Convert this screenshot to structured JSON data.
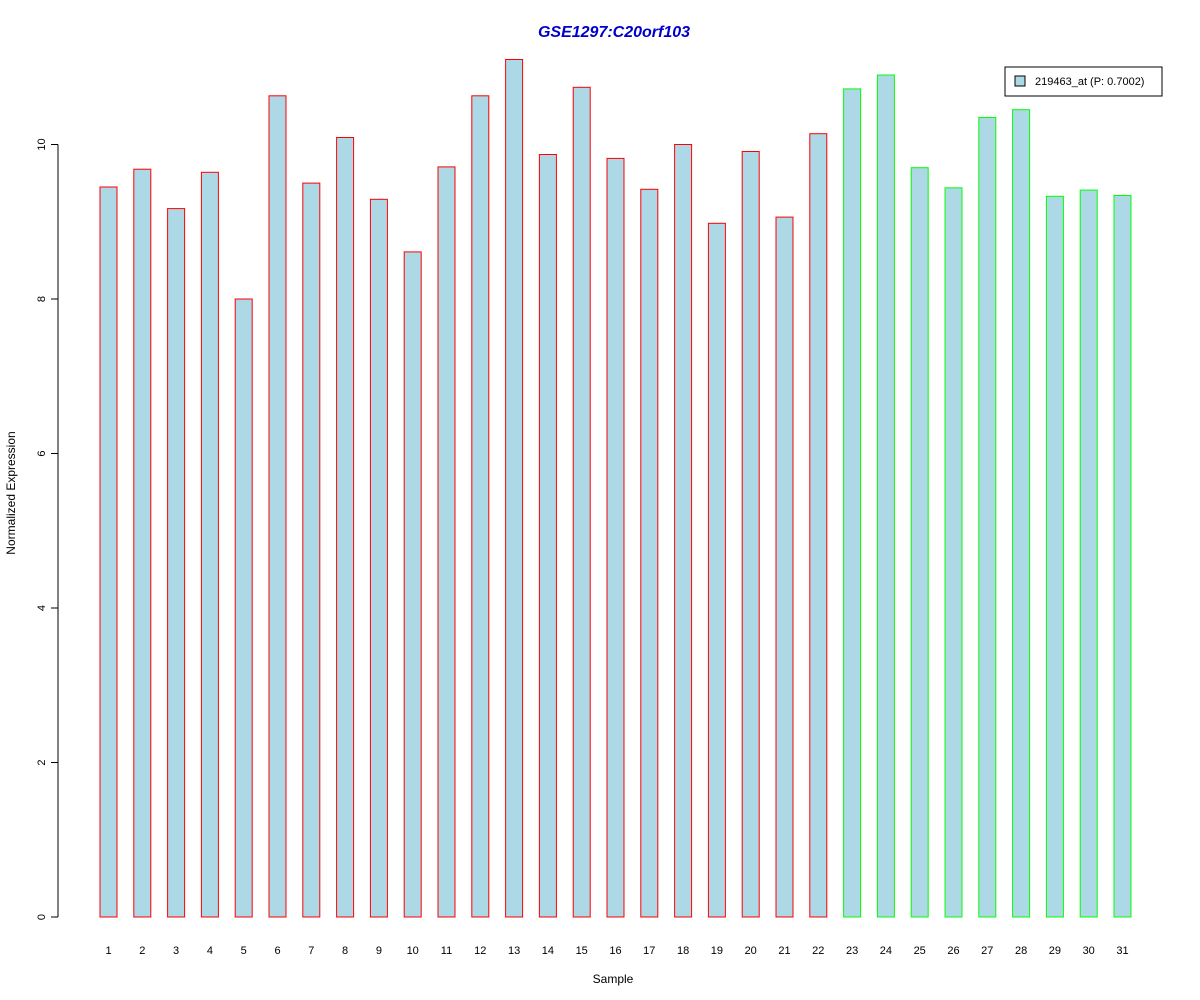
{
  "chart_data": {
    "type": "bar",
    "title": "GSE1297:C20orf103",
    "xlabel": "Sample",
    "ylabel": "Normalized Expression",
    "ylim": [
      0,
      11.2
    ],
    "yticks": [
      0,
      2,
      4,
      6,
      8,
      10
    ],
    "categories": [
      "1",
      "2",
      "3",
      "4",
      "5",
      "6",
      "7",
      "8",
      "9",
      "10",
      "11",
      "12",
      "13",
      "14",
      "15",
      "16",
      "17",
      "18",
      "19",
      "20",
      "21",
      "22",
      "23",
      "24",
      "25",
      "26",
      "27",
      "28",
      "29",
      "30",
      "31"
    ],
    "series": [
      {
        "name": "219463_at (P: 0.7002)",
        "values": [
          9.45,
          9.68,
          9.17,
          9.64,
          8.0,
          10.63,
          9.5,
          10.09,
          9.29,
          8.61,
          9.71,
          10.63,
          11.1,
          9.87,
          10.74,
          9.82,
          9.42,
          10.0,
          8.98,
          9.91,
          9.06,
          10.14,
          10.72,
          10.9,
          9.7,
          9.44,
          10.35,
          10.45,
          9.33,
          9.41,
          9.34
        ]
      }
    ],
    "group_outline": [
      "red",
      "red",
      "red",
      "red",
      "red",
      "red",
      "red",
      "red",
      "red",
      "red",
      "red",
      "red",
      "red",
      "red",
      "red",
      "red",
      "red",
      "red",
      "red",
      "red",
      "red",
      "red",
      "green",
      "green",
      "green",
      "green",
      "green",
      "green",
      "green",
      "green",
      "green"
    ],
    "legend": {
      "position": "top-right",
      "fill": "#add8e6",
      "label": "219463_at (P: 0.7002)"
    }
  },
  "colors": {
    "title": "#0000cc",
    "bar_fill": "#add8e6",
    "outline_red": "#ff0000",
    "outline_green": "#00ff00"
  }
}
